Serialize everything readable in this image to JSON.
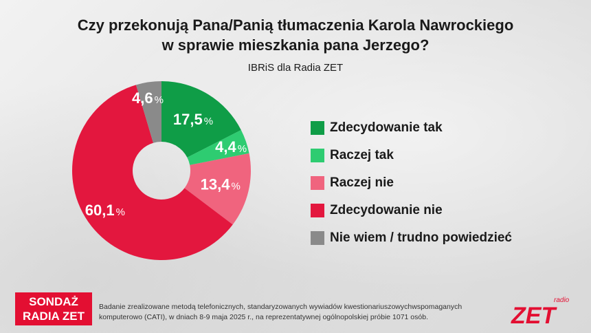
{
  "title_line1": "Czy przekonują Pana/Panią tłumaczenia Karola Nawrockiego",
  "title_line2": "w sprawie mieszkania pana Jerzego?",
  "subtitle": "IBRiS dla Radia ZET",
  "chart_data": {
    "type": "pie",
    "title": "Czy przekonują Pana/Panią tłumaczenia Karola Nawrockiego w sprawie mieszkania pana Jerzego?",
    "subtitle": "IBRiS dla Radia ZET",
    "legend_position": "right",
    "series": [
      {
        "name": "Zdecydowanie tak",
        "value": 17.5,
        "label": "17,5",
        "color": "#0f9d47"
      },
      {
        "name": "Raczej tak",
        "value": 4.4,
        "label": "4,4",
        "color": "#2ecc71"
      },
      {
        "name": "Raczej nie",
        "value": 13.4,
        "label": "13,4",
        "color": "#f0647e"
      },
      {
        "name": "Zdecydowanie nie",
        "value": 60.1,
        "label": "60,1",
        "color": "#e3173e"
      },
      {
        "name": "Nie wiem / trudno powiedzieć",
        "value": 4.6,
        "label": "4,6",
        "color": "#8a8a8a"
      }
    ],
    "percent_sign": "%"
  },
  "logo": {
    "line1": "SONDAŻ",
    "line2": "RADIA ZET"
  },
  "footnote": {
    "line1": "Badanie zrealizowane metodą telefonicznych, standaryzowanych wywiadów kwestionariuszowychwspomaganych",
    "line2": "komputerowo (CATI), w dniach 8-9 maja 2025 r., na reprezentatywnej ogólnopolskiej próbie 1071 osób."
  },
  "brand": {
    "small": "radio",
    "big": "ZET",
    "color": "#e30f32"
  }
}
